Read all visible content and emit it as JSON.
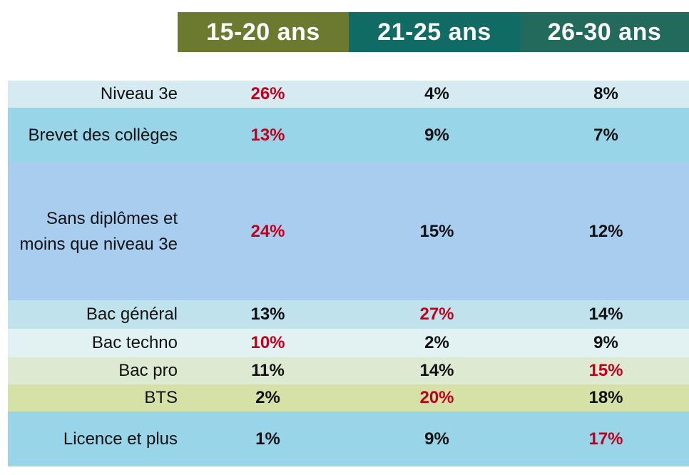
{
  "chart_data": {
    "type": "table",
    "columns": [
      "15-20 ans",
      "21-25 ans",
      "26-30 ans"
    ],
    "rows": [
      {
        "label": "Niveau 3e",
        "values": [
          "26%",
          "4%",
          "8%"
        ],
        "highlight": [
          true,
          false,
          false
        ]
      },
      {
        "label": "Brevet des collèges",
        "values": [
          "13%",
          "9%",
          "7%"
        ],
        "highlight": [
          true,
          false,
          false
        ]
      },
      {
        "label": "Sans diplômes et moins que niveau 3e",
        "values": [
          "24%",
          "15%",
          "12%"
        ],
        "highlight": [
          true,
          false,
          false
        ]
      },
      {
        "label": "Bac général",
        "values": [
          "13%",
          "27%",
          "14%"
        ],
        "highlight": [
          false,
          true,
          false
        ]
      },
      {
        "label": "Bac techno",
        "values": [
          "10%",
          "2%",
          "9%"
        ],
        "highlight": [
          true,
          false,
          false
        ]
      },
      {
        "label": "Bac pro",
        "values": [
          "11%",
          "14%",
          "15%"
        ],
        "highlight": [
          false,
          false,
          true
        ]
      },
      {
        "label": "BTS",
        "values": [
          "2%",
          "20%",
          "18%"
        ],
        "highlight": [
          false,
          true,
          false
        ]
      },
      {
        "label": "Licence  et plus",
        "values": [
          "1%",
          "9%",
          "17%"
        ],
        "highlight": [
          false,
          false,
          true
        ]
      }
    ]
  },
  "colors": {
    "header_bg": [
      "#6b7a2e",
      "#0f6b64",
      "#226b5c"
    ],
    "row_bg": [
      "#d5ebf1",
      "#98d5e8",
      "#a9cdef",
      "#c0e2ec",
      "#e2f1f1",
      "#dde9d1",
      "#d6e1a8",
      "#98d5e8"
    ],
    "highlight": "#c0001c",
    "normal": "#111111"
  }
}
